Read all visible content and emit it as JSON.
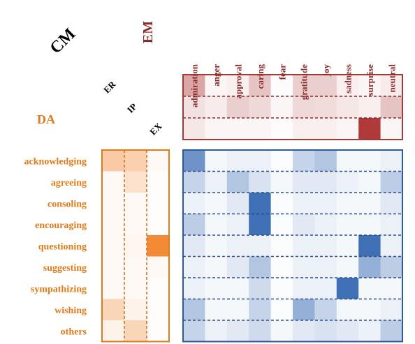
{
  "chart_data": {
    "type": "heatmap",
    "title_cm": "CM",
    "title_em": "EM",
    "title_da": "DA",
    "em_labels": [
      "admiration",
      "anger",
      "approval",
      "caring",
      "fear",
      "gratitude",
      "joy",
      "sadness",
      "surprise",
      "neutral"
    ],
    "cm_labels": [
      "ER",
      "IP",
      "EX"
    ],
    "da_labels": [
      "acknowledging",
      "agreeing",
      "consoling",
      "encouraging",
      "questioning",
      "suggesting",
      "sympathizing",
      "wishing",
      "others"
    ],
    "cm_em_matrix": [
      [
        0.45,
        0.05,
        0.08,
        0.3,
        0.02,
        0.25,
        0.25,
        0.08,
        0.05,
        0.1
      ],
      [
        0.15,
        0.1,
        0.25,
        0.2,
        0.05,
        0.2,
        0.18,
        0.12,
        0.08,
        0.3
      ],
      [
        0.12,
        0.05,
        0.05,
        0.05,
        0.02,
        0.08,
        0.08,
        0.05,
        1.0,
        0.05
      ]
    ],
    "da_cm_matrix": [
      [
        0.45,
        0.4,
        0.05
      ],
      [
        0.05,
        0.25,
        0.02
      ],
      [
        0.05,
        0.05,
        0.02
      ],
      [
        0.05,
        0.05,
        0.02
      ],
      [
        0.05,
        0.08,
        1.0
      ],
      [
        0.05,
        0.05,
        0.05
      ],
      [
        0.05,
        0.05,
        0.02
      ],
      [
        0.35,
        0.1,
        0.02
      ],
      [
        0.1,
        0.35,
        0.02
      ]
    ],
    "da_em_matrix": [
      [
        0.75,
        0.05,
        0.1,
        0.1,
        0.02,
        0.3,
        0.4,
        0.05,
        0.05,
        0.1
      ],
      [
        0.3,
        0.1,
        0.4,
        0.2,
        0.05,
        0.15,
        0.15,
        0.1,
        0.05,
        0.35
      ],
      [
        0.1,
        0.05,
        0.15,
        1.0,
        0.02,
        0.1,
        0.1,
        0.05,
        0.05,
        0.15
      ],
      [
        0.35,
        0.05,
        0.1,
        1.0,
        0.02,
        0.15,
        0.1,
        0.05,
        0.05,
        0.1
      ],
      [
        0.15,
        0.05,
        0.1,
        0.1,
        0.02,
        0.1,
        0.1,
        0.05,
        1.0,
        0.1
      ],
      [
        0.1,
        0.05,
        0.15,
        0.4,
        0.02,
        0.1,
        0.1,
        0.05,
        0.55,
        0.35
      ],
      [
        0.1,
        0.05,
        0.05,
        0.25,
        0.02,
        0.1,
        0.1,
        1.0,
        0.05,
        0.05
      ],
      [
        0.4,
        0.05,
        0.05,
        0.3,
        0.02,
        0.55,
        0.3,
        0.05,
        0.05,
        0.1
      ],
      [
        0.3,
        0.1,
        0.15,
        0.25,
        0.05,
        0.15,
        0.2,
        0.15,
        0.1,
        0.35
      ]
    ],
    "colors": {
      "cm_em": "#b03a3a",
      "da_cm": "#f28a36",
      "da_em": "#3f6fb5",
      "em_text": "#8b2c2c",
      "da_text": "#e07b1a",
      "cm_text": "#000000"
    },
    "grid": "dashed row separators",
    "legend": "none"
  }
}
